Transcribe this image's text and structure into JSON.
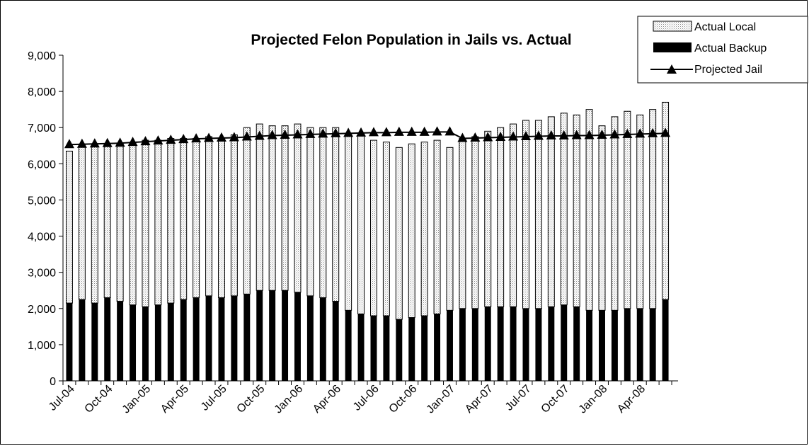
{
  "chart_data": {
    "type": "bar",
    "title": "Projected Felon Population in Jails vs. Actual",
    "stacked": true,
    "ylim": [
      0,
      9000
    ],
    "yticks": [
      "0",
      "1,000",
      "2,000",
      "3,000",
      "4,000",
      "5,000",
      "6,000",
      "7,000",
      "8,000",
      "9,000"
    ],
    "ytick_values": [
      0,
      1000,
      2000,
      3000,
      4000,
      5000,
      6000,
      7000,
      8000,
      9000
    ],
    "categories": [
      "Jul-04",
      "Aug-04",
      "Sep-04",
      "Oct-04",
      "Nov-04",
      "Dec-04",
      "Jan-05",
      "Feb-05",
      "Mar-05",
      "Apr-05",
      "May-05",
      "Jun-05",
      "Jul-05",
      "Aug-05",
      "Sep-05",
      "Oct-05",
      "Nov-05",
      "Dec-05",
      "Jan-06",
      "Feb-06",
      "Mar-06",
      "Apr-06",
      "May-06",
      "Jun-06",
      "Jul-06",
      "Aug-06",
      "Sep-06",
      "Oct-06",
      "Nov-06",
      "Dec-06",
      "Jan-07",
      "Feb-07",
      "Mar-07",
      "Apr-07",
      "May-07",
      "Jun-07",
      "Jul-07",
      "Aug-07",
      "Sep-07",
      "Oct-07",
      "Nov-07",
      "Dec-07",
      "Jan-08",
      "Feb-08",
      "Mar-08",
      "Apr-08",
      "May-08",
      "Jun-08"
    ],
    "x_tick_labels": [
      "Jul-04",
      "Oct-04",
      "Jan-05",
      "Apr-05",
      "Jul-05",
      "Oct-05",
      "Jan-06",
      "Apr-06",
      "Jul-06",
      "Oct-06",
      "Jan-07",
      "Apr-07",
      "Jul-07",
      "Oct-07",
      "Jan-08",
      "Apr-08"
    ],
    "grid": false,
    "legend_position": "top-right",
    "series": [
      {
        "name": "Actual Backup",
        "kind": "bar",
        "color": "#000000",
        "values": [
          2150,
          2250,
          2150,
          2300,
          2200,
          2100,
          2050,
          2100,
          2150,
          2250,
          2300,
          2350,
          2300,
          2350,
          2400,
          2500,
          2500,
          2500,
          2450,
          2350,
          2300,
          2200,
          1950,
          1850,
          1800,
          1800,
          1700,
          1750,
          1800,
          1850,
          1950,
          2000,
          2000,
          2050,
          2050,
          2050,
          2000,
          2000,
          2050,
          2100,
          2050,
          1950,
          1950,
          1950,
          2000,
          2000,
          2000,
          2250
        ]
      },
      {
        "name": "Actual Local",
        "kind": "bar",
        "color": "#d9d9d9",
        "values": [
          4200,
          4250,
          4350,
          4250,
          4350,
          4450,
          4600,
          4550,
          4550,
          4450,
          4400,
          4400,
          4400,
          4450,
          4600,
          4600,
          4550,
          4550,
          4650,
          4650,
          4700,
          4800,
          4850,
          4950,
          4850,
          4800,
          4750,
          4800,
          4800,
          4800,
          4500,
          4700,
          4750,
          4850,
          4950,
          5050,
          5200,
          5200,
          5250,
          5300,
          5300,
          5550,
          5100,
          5350,
          5450,
          5350,
          5500,
          5450
        ]
      },
      {
        "name": "Projected Jail",
        "kind": "line",
        "color": "#000000",
        "marker": "triangle",
        "values": [
          6530,
          6540,
          6550,
          6560,
          6570,
          6590,
          6610,
          6630,
          6650,
          6670,
          6690,
          6700,
          6710,
          6720,
          6740,
          6760,
          6780,
          6790,
          6800,
          6810,
          6820,
          6830,
          6840,
          6850,
          6860,
          6860,
          6870,
          6870,
          6870,
          6880,
          6880,
          6700,
          6710,
          6720,
          6730,
          6740,
          6750,
          6760,
          6770,
          6770,
          6780,
          6780,
          6790,
          6800,
          6810,
          6820,
          6830,
          6840
        ]
      }
    ]
  }
}
